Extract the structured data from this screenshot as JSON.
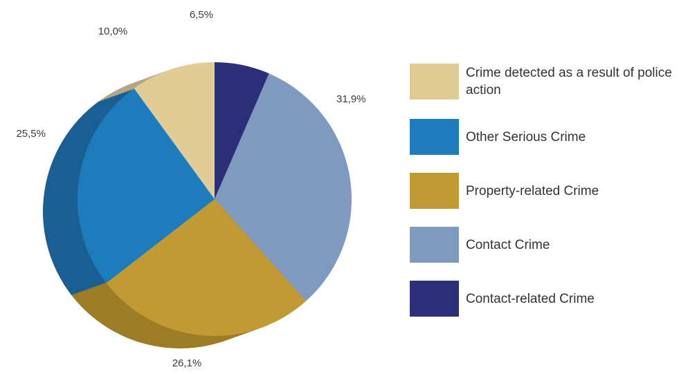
{
  "chart_data": {
    "type": "pie",
    "title": "",
    "slices": [
      {
        "label": "Contact-related Crime",
        "value": 6.5,
        "display": "6,5%",
        "color": "#2a2f78",
        "side_color": "#1c2058"
      },
      {
        "label": "Contact Crime",
        "value": 31.9,
        "display": "31,9%",
        "color": "#8099bf",
        "side_color": "#6a84ad"
      },
      {
        "label": "Property-related Crime",
        "value": 26.1,
        "display": "26,1%",
        "color": "#c29a34",
        "side_color": "#9d7c26"
      },
      {
        "label": "Other Serious Crime",
        "value": 25.5,
        "display": "25,5%",
        "color": "#1d7cbc",
        "side_color": "#1a5f94"
      },
      {
        "label": "Crime detected as a result of police action",
        "value": 10.0,
        "display": "10,0%",
        "color": "#e1cc96",
        "side_color": "#b5a583"
      }
    ],
    "legend": {
      "placement": "right",
      "items": [
        {
          "label": "Crime detected as a result of police action",
          "color": "#e1cc96"
        },
        {
          "label": "Other Serious Crime",
          "color": "#1d7cbc"
        },
        {
          "label": "Property-related Crime",
          "color": "#c29a34"
        },
        {
          "label": "Contact Crime",
          "color": "#8099bf"
        },
        {
          "label": "Contact-related Crime",
          "color": "#2a2f78"
        }
      ]
    }
  }
}
